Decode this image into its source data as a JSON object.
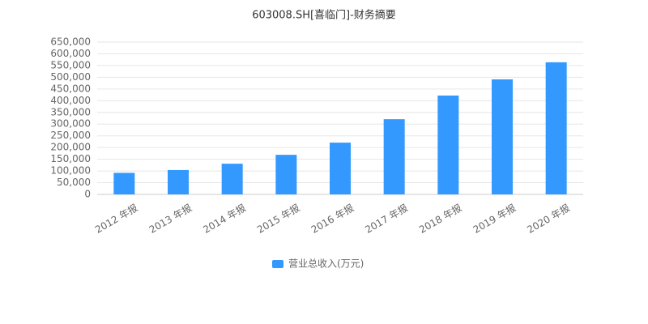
{
  "chart_data": {
    "type": "bar",
    "title": "603008.SH[喜临门]-财务摘要",
    "categories": [
      "2012 年报",
      "2013 年报",
      "2014 年报",
      "2015 年报",
      "2016 年报",
      "2017 年报",
      "2018 年报",
      "2019 年报",
      "2020 年报"
    ],
    "series": [
      {
        "name": "营业总收入(万元)",
        "color": "#3399ff",
        "values": [
          92000,
          104000,
          131000,
          169000,
          221000,
          321000,
          422000,
          491000,
          564000
        ]
      }
    ],
    "ylim": [
      0,
      650000
    ],
    "yticks": [
      0,
      {
        "value": 50000,
        "label": "50,000"
      },
      {
        "value": 100000,
        "label": "100,000"
      },
      {
        "value": 150000,
        "label": "150,000"
      },
      {
        "value": 200000,
        "label": "200,000"
      },
      {
        "value": 250000,
        "label": "250,000"
      },
      {
        "value": 300000,
        "label": "300,000"
      },
      {
        "value": 350000,
        "label": "350,000"
      },
      {
        "value": 400000,
        "label": "400,000"
      },
      {
        "value": 450000,
        "label": "450,000"
      },
      {
        "value": 500000,
        "label": "500,000"
      },
      {
        "value": 550000,
        "label": "550,000"
      },
      {
        "value": 600000,
        "label": "600,000"
      },
      {
        "value": 650000,
        "label": "650,000"
      }
    ],
    "grid": true,
    "legend": "bottom"
  }
}
